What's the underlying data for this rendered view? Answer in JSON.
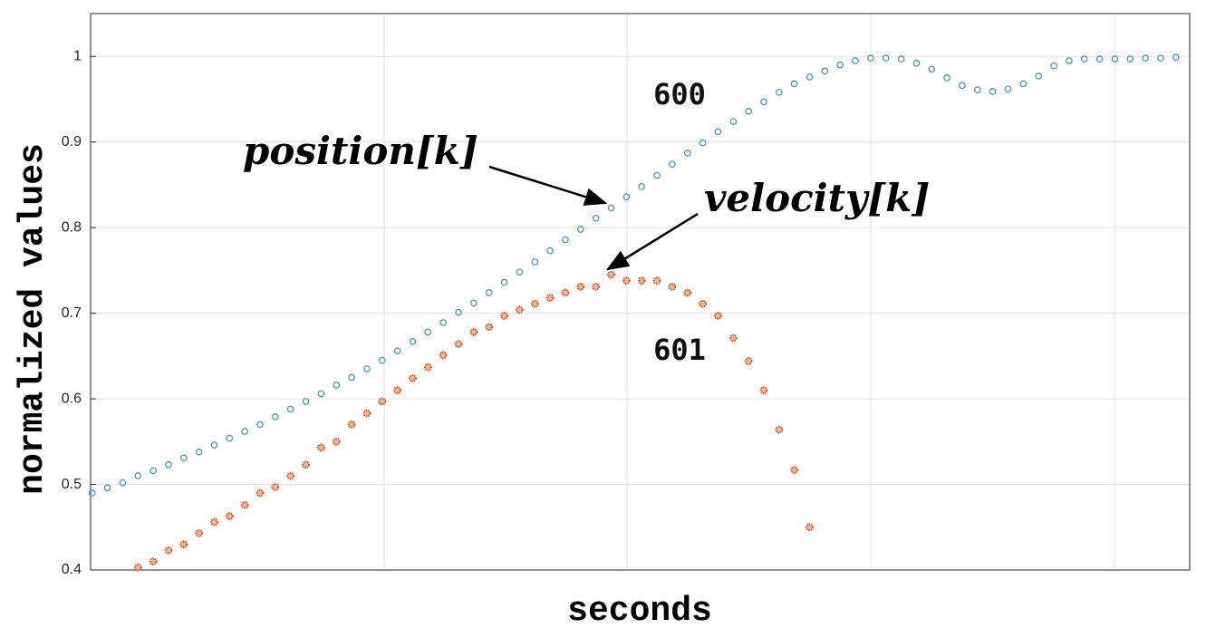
{
  "chart_data": {
    "type": "scatter",
    "xlabel": "seconds",
    "ylabel": "normalized values",
    "annotations": [
      "600",
      "601",
      "position[k]",
      "velocity[k]"
    ],
    "x": [
      0,
      1,
      2,
      3,
      4,
      5,
      6,
      7,
      8,
      9,
      10,
      11,
      12,
      13,
      14,
      15,
      16,
      17,
      18,
      19,
      20,
      21,
      22,
      23,
      24,
      25,
      26,
      27,
      28,
      29,
      30,
      31,
      32,
      33,
      34,
      35,
      36,
      37,
      38,
      39,
      40,
      41,
      42,
      43,
      44,
      45,
      46,
      47,
      48,
      49,
      50,
      51,
      52,
      53,
      54,
      55,
      56,
      57,
      58,
      59,
      60,
      61,
      62,
      63,
      64,
      65,
      66,
      67,
      68,
      69,
      70,
      71
    ],
    "series": [
      {
        "name": "position",
        "color": "#3a8fc8",
        "values": [
          0.49,
          0.496,
          0.502,
          0.51,
          0.516,
          0.523,
          0.531,
          0.538,
          0.546,
          0.554,
          0.562,
          0.57,
          0.579,
          0.588,
          0.597,
          0.606,
          0.616,
          0.625,
          0.635,
          0.645,
          0.656,
          0.667,
          0.678,
          0.689,
          0.701,
          0.712,
          0.724,
          0.736,
          0.748,
          0.76,
          0.773,
          0.786,
          0.798,
          0.811,
          0.823,
          0.836,
          0.848,
          0.861,
          0.874,
          0.887,
          0.899,
          0.912,
          0.924,
          0.936,
          0.947,
          0.958,
          0.968,
          0.976,
          0.983,
          0.99,
          0.995,
          0.998,
          0.998,
          0.997,
          0.992,
          0.985,
          0.975,
          0.966,
          0.961,
          0.959,
          0.962,
          0.968,
          0.977,
          0.989,
          0.995,
          0.997,
          0.997,
          0.997,
          0.997,
          0.998,
          0.998,
          0.999
        ]
      },
      {
        "name": "velocity",
        "color": "#d95319",
        "values": [
          null,
          null,
          null,
          0.403,
          0.41,
          0.423,
          0.43,
          0.443,
          0.456,
          0.463,
          0.476,
          0.49,
          0.497,
          0.51,
          0.523,
          0.543,
          0.55,
          0.57,
          0.583,
          0.597,
          0.61,
          0.624,
          0.637,
          0.651,
          0.664,
          0.678,
          0.684,
          0.697,
          0.704,
          0.711,
          0.718,
          0.724,
          0.731,
          0.731,
          0.745,
          0.738,
          0.738,
          0.738,
          0.731,
          0.724,
          0.711,
          0.697,
          0.671,
          0.644,
          0.61,
          0.564,
          0.517,
          0.45,
          null,
          null,
          null,
          null,
          null,
          null,
          null,
          null,
          null,
          null,
          null,
          null,
          null,
          null,
          null,
          null,
          null,
          null,
          null,
          null,
          null,
          null,
          null,
          null
        ]
      }
    ],
    "xlim": [
      -0.1,
      71.9
    ],
    "ylim": [
      0.4,
      1.05
    ],
    "yticks": [
      0.4,
      0.5,
      0.6,
      0.7,
      0.8,
      0.9,
      1
    ],
    "grid": true
  }
}
